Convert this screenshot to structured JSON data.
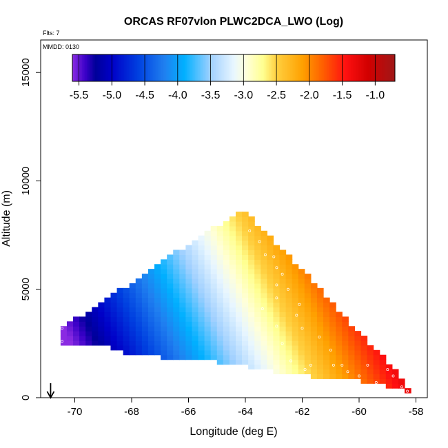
{
  "header": {
    "flts_label": "Flts: 7",
    "mmdd_label": "MMDD: 0130"
  },
  "chart_data": {
    "type": "heatmap",
    "title": "ORCAS RF07vlon PLWC2DCA_LWO (Log)",
    "xlabel": "Longitude (deg E)",
    "ylabel": "Altitude (m)",
    "xlim": [
      -71.2,
      -57.6
    ],
    "ylim": [
      0,
      16500
    ],
    "x_ticks": [
      -70,
      -68,
      -66,
      -64,
      -62,
      -60,
      -58
    ],
    "y_ticks": [
      0,
      5000,
      10000,
      15000
    ],
    "colorbar": {
      "range": [
        -5.6,
        -0.7
      ],
      "ticks": [
        "-5.5",
        "-5.0",
        "-4.5",
        "-4.0",
        "-3.5",
        "-3.0",
        "-2.5",
        "-2.0",
        "-1.5",
        "-1.0"
      ],
      "tick_values": [
        -5.5,
        -5.0,
        -4.5,
        -4.0,
        -3.5,
        -3.0,
        -2.5,
        -2.0,
        -1.5,
        -1.0
      ],
      "divisions": [
        -5.5,
        -5.0,
        -4.5,
        -4.0,
        -3.5,
        -3.0,
        -2.5,
        -2.0,
        -1.5,
        -1.0
      ],
      "stops": [
        {
          "v": -5.6,
          "color": "#8a2be2"
        },
        {
          "v": -5.4,
          "color": "#3a00c8"
        },
        {
          "v": -5.25,
          "color": "#000099"
        },
        {
          "v": -5.0,
          "color": "#0000c8"
        },
        {
          "v": -4.6,
          "color": "#0040e0"
        },
        {
          "v": -4.2,
          "color": "#2080f0"
        },
        {
          "v": -3.9,
          "color": "#00b0ff"
        },
        {
          "v": -3.5,
          "color": "#a0d0ff"
        },
        {
          "v": -3.15,
          "color": "#e8f6ff"
        },
        {
          "v": -2.95,
          "color": "#ffffd8"
        },
        {
          "v": -2.7,
          "color": "#ffff90"
        },
        {
          "v": -2.5,
          "color": "#ffd040"
        },
        {
          "v": -2.1,
          "color": "#ffa000"
        },
        {
          "v": -1.8,
          "color": "#ff6000"
        },
        {
          "v": -1.45,
          "color": "#ff1010"
        },
        {
          "v": -1.1,
          "color": "#d00000"
        },
        {
          "v": -0.7,
          "color": "#a01818"
        }
      ]
    },
    "field": {
      "apex_lon": -64.1,
      "apex_alt": 8700,
      "left_edge": [
        [
          -70.5,
          3300
        ],
        [
          -70.0,
          3600
        ],
        [
          -69.0,
          4500
        ],
        [
          -68.0,
          5300
        ],
        [
          -67.0,
          6200
        ],
        [
          -66.0,
          7100
        ],
        [
          -65.0,
          7900
        ],
        [
          -64.1,
          8700
        ]
      ],
      "right_edge": [
        [
          -64.1,
          8700
        ],
        [
          -63.0,
          7200
        ],
        [
          -62.0,
          5900
        ],
        [
          -61.0,
          4500
        ],
        [
          -60.0,
          3000
        ],
        [
          -59.0,
          1700
        ],
        [
          -58.2,
          400
        ]
      ],
      "bottom_edge": [
        [
          -70.5,
          2500
        ],
        [
          -69.0,
          2400
        ],
        [
          -68.0,
          2000
        ],
        [
          -66.5,
          1800
        ],
        [
          -64.5,
          1600
        ],
        [
          -63.5,
          1300
        ],
        [
          -62.5,
          1100
        ],
        [
          -61.0,
          900
        ],
        [
          -59.5,
          700
        ],
        [
          -58.2,
          300
        ]
      ],
      "value_lon_start": -70.4,
      "value_lon_end": -58.3,
      "value_start": -5.5,
      "value_end": -0.8,
      "tilt_per_meter": 0.00014,
      "cell_lon": 0.22,
      "cell_alt": 220
    },
    "data_point_markers": [
      [
        -70.45,
        3200
      ],
      [
        -70.45,
        2600
      ],
      [
        -63.85,
        7700
      ],
      [
        -63.5,
        7200
      ],
      [
        -63.3,
        6600
      ],
      [
        -63.0,
        6500
      ],
      [
        -62.9,
        6000
      ],
      [
        -62.9,
        5200
      ],
      [
        -62.7,
        5700
      ],
      [
        -63.4,
        4100
      ],
      [
        -62.9,
        4600
      ],
      [
        -62.5,
        5000
      ],
      [
        -62.2,
        3800
      ],
      [
        -62.1,
        4300
      ],
      [
        -62.9,
        3300
      ],
      [
        -62.7,
        2500
      ],
      [
        -62.4,
        1700
      ],
      [
        -62.0,
        3200
      ],
      [
        -61.4,
        2800
      ],
      [
        -61.0,
        2200
      ],
      [
        -60.9,
        1500
      ],
      [
        -60.6,
        1500
      ],
      [
        -60.4,
        1200
      ],
      [
        -60.0,
        1000
      ],
      [
        -59.7,
        1500
      ],
      [
        -59.4,
        700
      ],
      [
        -59.0,
        1300
      ],
      [
        -58.8,
        1000
      ],
      [
        -58.5,
        500
      ],
      [
        -58.3,
        300
      ],
      [
        -61.7,
        1500
      ],
      [
        -61.9,
        1300
      ]
    ],
    "marker": {
      "lon": -70.85,
      "label": "down-arrow"
    }
  }
}
